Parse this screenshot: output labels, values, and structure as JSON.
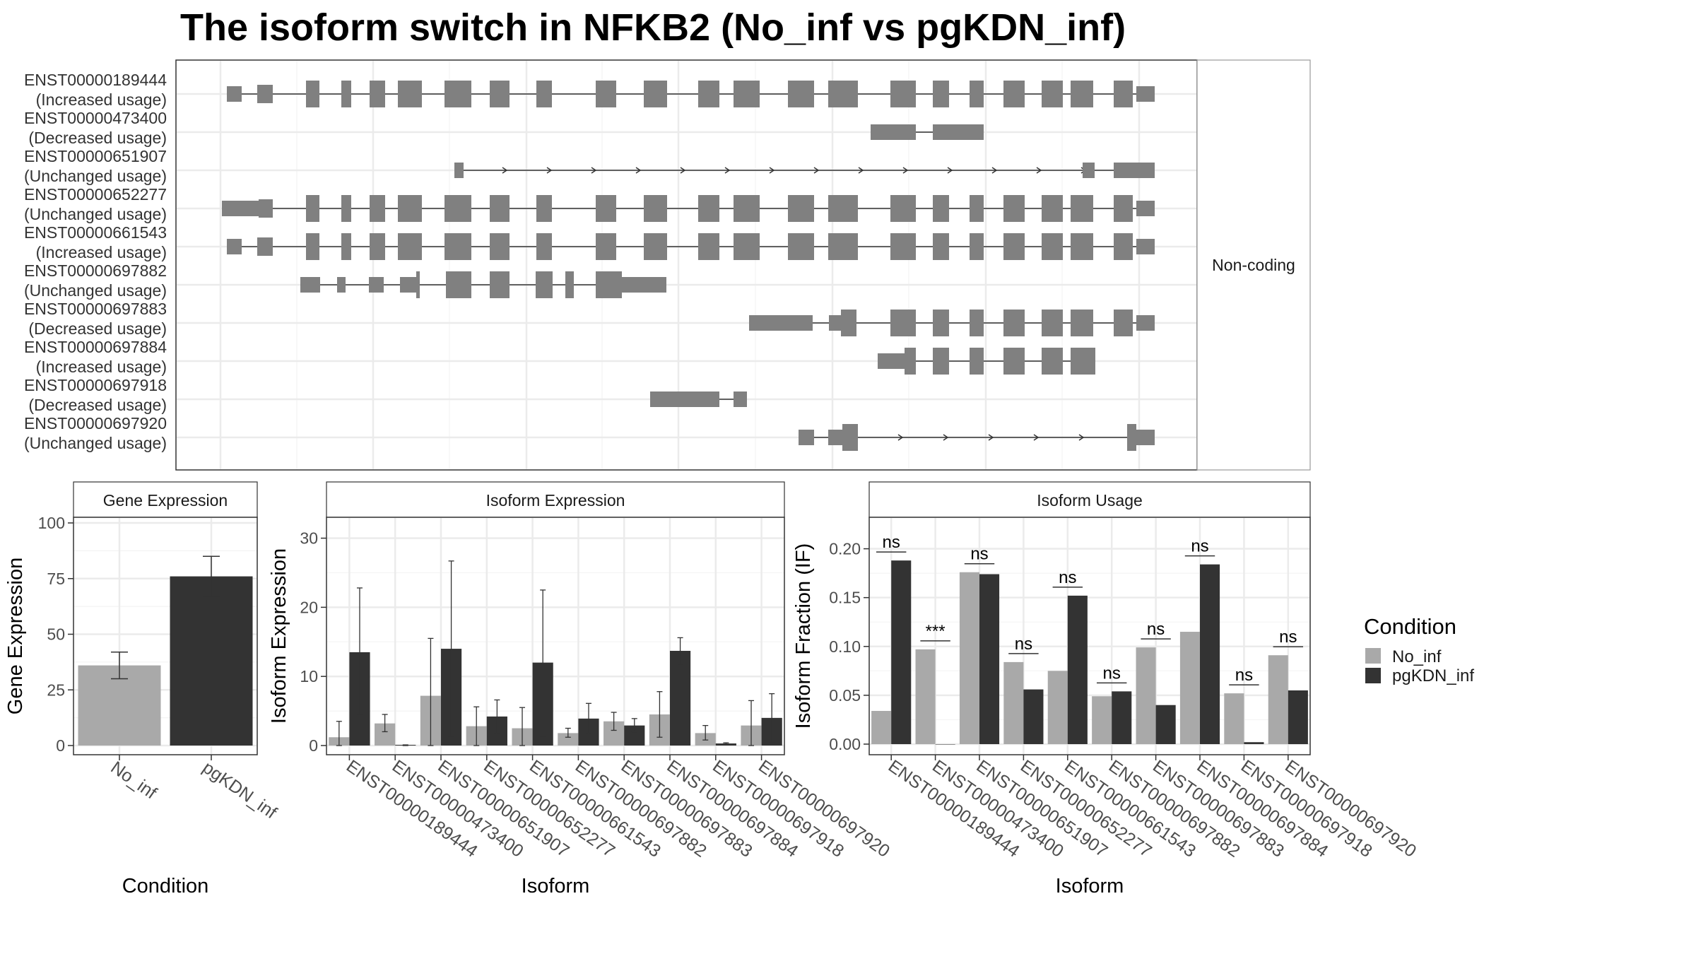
{
  "title": "The isoform switch in NFKB2 (No_inf vs pgKDN_inf)",
  "colors": {
    "no_inf": "#a9a9a9",
    "pgkdn_inf": "#333333",
    "exon": "#808080",
    "panel_border": "#333333",
    "strip_border": "#999999",
    "grid": "#ebebeb"
  },
  "structure_panel": {
    "strip_label": "Non-coding",
    "isoforms": [
      {
        "id": "ENST00000189444",
        "status": "(Increased usage)"
      },
      {
        "id": "ENST00000473400",
        "status": "(Decreased usage)"
      },
      {
        "id": "ENST00000651907",
        "status": "(Unchanged usage)"
      },
      {
        "id": "ENST00000652277",
        "status": "(Unchanged usage)"
      },
      {
        "id": "ENST00000661543",
        "status": "(Increased usage)"
      },
      {
        "id": "ENST00000697882",
        "status": "(Unchanged usage)"
      },
      {
        "id": "ENST00000697883",
        "status": "(Decreased usage)"
      },
      {
        "id": "ENST00000697884",
        "status": "(Increased usage)"
      },
      {
        "id": "ENST00000697918",
        "status": "(Decreased usage)"
      },
      {
        "id": "ENST00000697920",
        "status": "(Unchanged usage)"
      }
    ]
  },
  "legend": {
    "title": "Condition",
    "items": [
      "No_inf",
      "pgKDN_inf"
    ]
  },
  "chart_data": [
    {
      "type": "bar",
      "title": "Gene Expression",
      "xlabel": "Condition",
      "ylabel": "Gene Expression",
      "categories": [
        "No_inf",
        "pgKDN_inf"
      ],
      "values": [
        36,
        76
      ],
      "error_low": [
        30,
        67
      ],
      "error_high": [
        42,
        85
      ],
      "ylim": [
        0,
        100
      ],
      "yticks": [
        0,
        25,
        50,
        75,
        100
      ]
    },
    {
      "type": "bar",
      "title": "Isoform Expression",
      "xlabel": "Isoform",
      "ylabel": "Isoform Expression",
      "categories": [
        "ENST00000189444",
        "ENST00000473400",
        "ENST00000651907",
        "ENST00000652277",
        "ENST00000661543",
        "ENST00000697882",
        "ENST00000697883",
        "ENST00000697884",
        "ENST00000697918",
        "ENST00000697920"
      ],
      "series": [
        {
          "name": "No_inf",
          "values": [
            1.2,
            3.2,
            7.2,
            2.8,
            2.5,
            1.8,
            3.5,
            4.5,
            1.8,
            2.9
          ],
          "error_low": [
            0,
            2,
            0,
            0,
            0,
            1.2,
            2.2,
            1.2,
            0.8,
            0
          ],
          "error_high": [
            3.5,
            4.5,
            15.5,
            5.6,
            5.5,
            2.5,
            4.8,
            7.8,
            2.9,
            6.5
          ]
        },
        {
          "name": "pgKDN_inf",
          "values": [
            13.5,
            0.1,
            14,
            4.2,
            12,
            3.9,
            2.9,
            13.7,
            0.3,
            4
          ],
          "error_low": [
            4.5,
            0,
            1.3,
            1.8,
            1.3,
            1.8,
            2,
            11.8,
            0.2,
            0.4
          ],
          "error_high": [
            22.8,
            0.1,
            26.7,
            6.6,
            22.5,
            6.1,
            3.9,
            15.6,
            0.4,
            7.5
          ]
        }
      ],
      "ylim": [
        0,
        32
      ],
      "yticks": [
        0,
        10,
        20,
        30
      ]
    },
    {
      "type": "bar",
      "title": "Isoform Usage",
      "xlabel": "Isoform",
      "ylabel": "Isoform Fraction (IF)",
      "categories": [
        "ENST00000189444",
        "ENST00000473400",
        "ENST00000651907",
        "ENST00000652277",
        "ENST00000661543",
        "ENST00000697882",
        "ENST00000697883",
        "ENST00000697884",
        "ENST00000697918",
        "ENST00000697920"
      ],
      "series": [
        {
          "name": "No_inf",
          "values": [
            0.034,
            0.097,
            0.176,
            0.084,
            0.075,
            0.049,
            0.099,
            0.115,
            0.052,
            0.091
          ]
        },
        {
          "name": "pgKDN_inf",
          "values": [
            0.188,
            0.0,
            0.174,
            0.056,
            0.152,
            0.054,
            0.04,
            0.184,
            0.002,
            0.055
          ]
        }
      ],
      "significance": [
        "ns",
        "***",
        "ns",
        "ns",
        "ns",
        "ns",
        "ns",
        "ns",
        "ns",
        "ns"
      ],
      "ylim": [
        0,
        0.225
      ],
      "yticks": [
        0.0,
        0.05,
        0.1,
        0.15,
        0.2
      ],
      "ytick_labels": [
        "0.00",
        "0.05",
        "0.10",
        "0.15",
        "0.20"
      ]
    }
  ]
}
